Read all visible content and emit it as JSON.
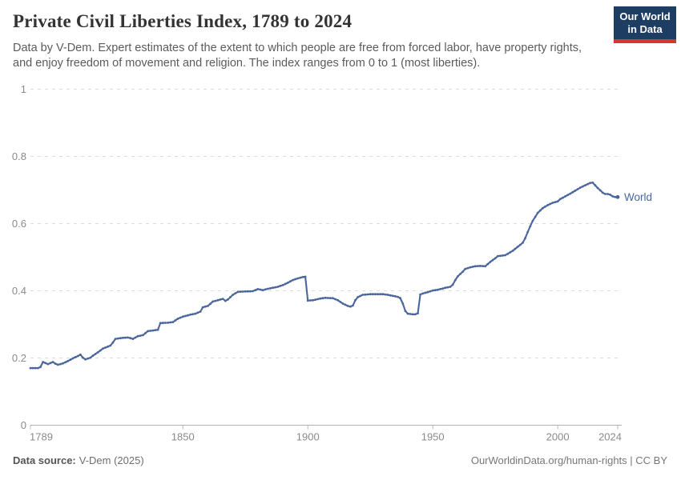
{
  "header": {
    "title": "Private Civil Liberties Index, 1789 to 2024",
    "subtitle_line1": "Data by V-Dem. Expert estimates of the extent to which people are free from forced labor, have property rights,",
    "subtitle_line2": "and enjoy freedom of movement and religion. The index ranges from 0 to 1 (most liberties).",
    "logo": {
      "line1": "Our World",
      "line2": "in Data",
      "bg_color": "#1d3d63",
      "accent_color": "#d8352d"
    }
  },
  "chart_data": {
    "type": "line",
    "title": "Private Civil Liberties Index, 1789 to 2024",
    "xlabel": "",
    "ylabel": "",
    "xlim": [
      1789,
      2024
    ],
    "ylim": [
      0,
      1
    ],
    "grid": "horizontal-dashed",
    "legend_position": "end-of-line-label",
    "x_ticks": [
      1789,
      1850,
      1900,
      1950,
      2000,
      2024
    ],
    "x_tick_labels": [
      "1789",
      "1850",
      "1900",
      "1950",
      "2000",
      "2024"
    ],
    "y_ticks": [
      0,
      0.2,
      0.4,
      0.6,
      0.8,
      1
    ],
    "y_tick_labels": [
      "0",
      "0.2",
      "0.4",
      "0.6",
      "0.8",
      "1"
    ],
    "end_label": "World",
    "series": [
      {
        "name": "World",
        "color": "#4a669c",
        "points": [
          [
            1789,
            0.17
          ],
          [
            1792,
            0.17
          ],
          [
            1793,
            0.173
          ],
          [
            1794,
            0.188
          ],
          [
            1795,
            0.185
          ],
          [
            1796,
            0.182
          ],
          [
            1797,
            0.185
          ],
          [
            1798,
            0.188
          ],
          [
            1799,
            0.183
          ],
          [
            1800,
            0.18
          ],
          [
            1802,
            0.184
          ],
          [
            1804,
            0.191
          ],
          [
            1806,
            0.199
          ],
          [
            1808,
            0.206
          ],
          [
            1809,
            0.21
          ],
          [
            1810,
            0.201
          ],
          [
            1811,
            0.196
          ],
          [
            1813,
            0.201
          ],
          [
            1814,
            0.207
          ],
          [
            1816,
            0.217
          ],
          [
            1818,
            0.228
          ],
          [
            1820,
            0.234
          ],
          [
            1821,
            0.237
          ],
          [
            1822,
            0.246
          ],
          [
            1823,
            0.257
          ],
          [
            1826,
            0.26
          ],
          [
            1828,
            0.261
          ],
          [
            1830,
            0.257
          ],
          [
            1832,
            0.265
          ],
          [
            1834,
            0.268
          ],
          [
            1836,
            0.28
          ],
          [
            1838,
            0.282
          ],
          [
            1840,
            0.284
          ],
          [
            1841,
            0.304
          ],
          [
            1844,
            0.305
          ],
          [
            1846,
            0.307
          ],
          [
            1848,
            0.317
          ],
          [
            1850,
            0.323
          ],
          [
            1853,
            0.329
          ],
          [
            1855,
            0.332
          ],
          [
            1857,
            0.338
          ],
          [
            1858,
            0.351
          ],
          [
            1860,
            0.355
          ],
          [
            1862,
            0.368
          ],
          [
            1864,
            0.372
          ],
          [
            1866,
            0.376
          ],
          [
            1867,
            0.37
          ],
          [
            1868,
            0.374
          ],
          [
            1870,
            0.388
          ],
          [
            1872,
            0.397
          ],
          [
            1875,
            0.398
          ],
          [
            1878,
            0.399
          ],
          [
            1880,
            0.405
          ],
          [
            1882,
            0.402
          ],
          [
            1884,
            0.406
          ],
          [
            1886,
            0.409
          ],
          [
            1888,
            0.412
          ],
          [
            1890,
            0.417
          ],
          [
            1892,
            0.424
          ],
          [
            1894,
            0.432
          ],
          [
            1896,
            0.437
          ],
          [
            1898,
            0.441
          ],
          [
            1899,
            0.442
          ],
          [
            1900,
            0.371
          ],
          [
            1902,
            0.372
          ],
          [
            1905,
            0.377
          ],
          [
            1907,
            0.379
          ],
          [
            1910,
            0.378
          ],
          [
            1912,
            0.372
          ],
          [
            1914,
            0.362
          ],
          [
            1916,
            0.355
          ],
          [
            1917,
            0.353
          ],
          [
            1918,
            0.356
          ],
          [
            1919,
            0.372
          ],
          [
            1920,
            0.381
          ],
          [
            1922,
            0.388
          ],
          [
            1925,
            0.39
          ],
          [
            1928,
            0.39
          ],
          [
            1930,
            0.39
          ],
          [
            1932,
            0.388
          ],
          [
            1934,
            0.385
          ],
          [
            1936,
            0.382
          ],
          [
            1937,
            0.378
          ],
          [
            1938,
            0.362
          ],
          [
            1939,
            0.34
          ],
          [
            1940,
            0.332
          ],
          [
            1942,
            0.33
          ],
          [
            1943,
            0.33
          ],
          [
            1944,
            0.333
          ],
          [
            1945,
            0.389
          ],
          [
            1946,
            0.392
          ],
          [
            1948,
            0.396
          ],
          [
            1950,
            0.401
          ],
          [
            1952,
            0.403
          ],
          [
            1955,
            0.409
          ],
          [
            1957,
            0.412
          ],
          [
            1958,
            0.418
          ],
          [
            1959,
            0.432
          ],
          [
            1960,
            0.443
          ],
          [
            1962,
            0.457
          ],
          [
            1963,
            0.465
          ],
          [
            1965,
            0.47
          ],
          [
            1967,
            0.473
          ],
          [
            1969,
            0.474
          ],
          [
            1971,
            0.473
          ],
          [
            1973,
            0.486
          ],
          [
            1975,
            0.497
          ],
          [
            1976,
            0.503
          ],
          [
            1979,
            0.506
          ],
          [
            1982,
            0.519
          ],
          [
            1984,
            0.531
          ],
          [
            1986,
            0.543
          ],
          [
            1987,
            0.557
          ],
          [
            1988,
            0.575
          ],
          [
            1989,
            0.592
          ],
          [
            1990,
            0.608
          ],
          [
            1991,
            0.62
          ],
          [
            1992,
            0.632
          ],
          [
            1994,
            0.646
          ],
          [
            1996,
            0.655
          ],
          [
            1998,
            0.662
          ],
          [
            2000,
            0.666
          ],
          [
            2001,
            0.673
          ],
          [
            2003,
            0.681
          ],
          [
            2005,
            0.689
          ],
          [
            2007,
            0.698
          ],
          [
            2009,
            0.707
          ],
          [
            2011,
            0.714
          ],
          [
            2013,
            0.721
          ],
          [
            2014,
            0.722
          ],
          [
            2015,
            0.714
          ],
          [
            2016,
            0.706
          ],
          [
            2017,
            0.699
          ],
          [
            2018,
            0.692
          ],
          [
            2019,
            0.688
          ],
          [
            2020,
            0.688
          ],
          [
            2021,
            0.686
          ],
          [
            2022,
            0.681
          ],
          [
            2023,
            0.679
          ],
          [
            2024,
            0.679
          ]
        ]
      }
    ]
  },
  "footer": {
    "source_label": "Data source:",
    "source_value": "V-Dem (2025)",
    "right_text": "OurWorldinData.org/human-rights | CC BY"
  },
  "colors": {
    "line": "#4a669c",
    "title": "#333333",
    "subtitle": "#5b5b5b",
    "tick_label": "#8a8a8a",
    "gridline": "#dcdcdc",
    "logo_bg": "#1d3d63",
    "logo_accent": "#d8352d"
  }
}
